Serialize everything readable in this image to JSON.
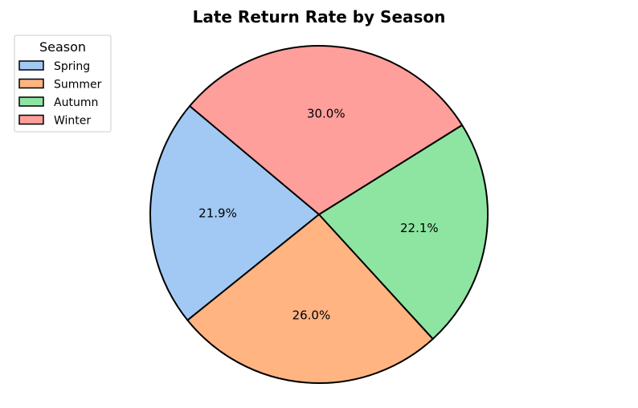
{
  "chart_data": {
    "type": "pie",
    "title": "Late Return Rate by Season",
    "categories": [
      "Spring",
      "Summer",
      "Autumn",
      "Winter"
    ],
    "values": [
      21.9,
      26.0,
      22.1,
      30.0
    ],
    "percent_labels": [
      "21.9%",
      "26.0%",
      "22.1%",
      "30.0%"
    ],
    "colors": [
      "#a1c9f4",
      "#ffb482",
      "#8de5a1",
      "#ff9f9b"
    ],
    "edge_color": "#000000",
    "start_angle_deg": 140,
    "direction": "counterclockwise",
    "legend": {
      "title": "Season",
      "placement": "upper-left",
      "entries": [
        "Spring",
        "Summer",
        "Autumn",
        "Winter"
      ]
    }
  }
}
